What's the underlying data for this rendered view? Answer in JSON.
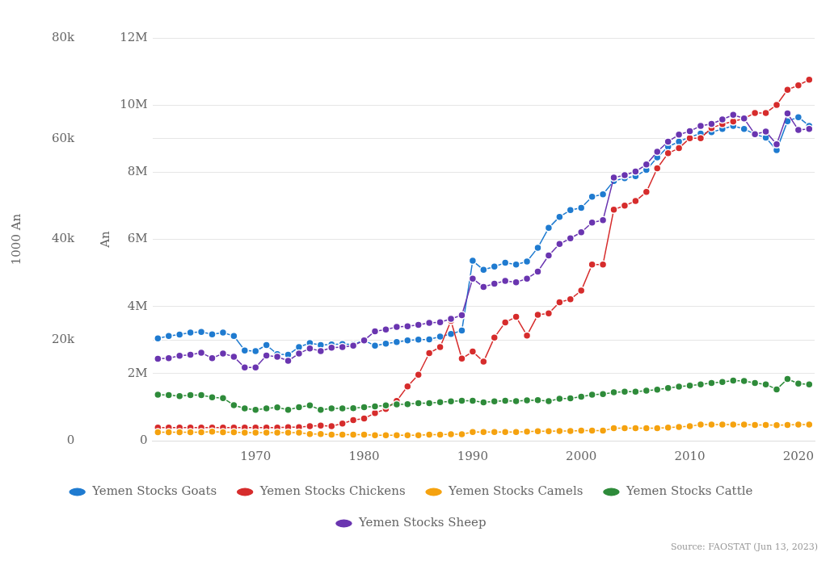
{
  "chart_data": {
    "type": "line",
    "ylabel": "An",
    "y2label": "1000 An",
    "annotations": [
      "Source: FAOSTAT (Jun 13, 2023)"
    ],
    "x": [
      1961,
      1962,
      1963,
      1964,
      1965,
      1966,
      1967,
      1968,
      1969,
      1970,
      1971,
      1972,
      1973,
      1974,
      1975,
      1976,
      1977,
      1978,
      1979,
      1980,
      1981,
      1982,
      1983,
      1984,
      1985,
      1986,
      1987,
      1988,
      1989,
      1990,
      1991,
      1992,
      1993,
      1994,
      1995,
      1996,
      1997,
      1998,
      1999,
      2000,
      2001,
      2002,
      2003,
      2004,
      2005,
      2006,
      2007,
      2008,
      2009,
      2010,
      2011,
      2012,
      2013,
      2014,
      2015,
      2016,
      2017,
      2018,
      2019,
      2020,
      2021
    ],
    "xlim": [
      1960.5,
      2021.5
    ],
    "xticks": [
      1970,
      1980,
      1990,
      2000,
      2010,
      2020
    ],
    "ylim": [
      0,
      12000000
    ],
    "yticks": [
      {
        "value": 0,
        "label": "0"
      },
      {
        "value": 2000000,
        "label": "2M"
      },
      {
        "value": 4000000,
        "label": "4M"
      },
      {
        "value": 6000000,
        "label": "6M"
      },
      {
        "value": 8000000,
        "label": "8M"
      },
      {
        "value": 10000000,
        "label": "10M"
      },
      {
        "value": 12000000,
        "label": "12M"
      }
    ],
    "y2lim": [
      0,
      80000
    ],
    "y2ticks": [
      {
        "value": 0,
        "label": "0"
      },
      {
        "value": 20000,
        "label": "20k"
      },
      {
        "value": 40000,
        "label": "40k"
      },
      {
        "value": 60000,
        "label": "60k"
      },
      {
        "value": 80000,
        "label": "80k"
      }
    ],
    "grid": "y",
    "legend": "bottom",
    "marker": "circle",
    "line_style": "solid",
    "series": [
      {
        "name": "Yemen Stocks Goats",
        "color": "#1f7bd0",
        "values": [
          3050000,
          3120000,
          3160000,
          3220000,
          3240000,
          3170000,
          3220000,
          3120000,
          2690000,
          2670000,
          2850000,
          2580000,
          2560000,
          2790000,
          2910000,
          2850000,
          2870000,
          2880000,
          2870000,
          2990000,
          2830000,
          2890000,
          2940000,
          2990000,
          3010000,
          3020000,
          3100000,
          3180000,
          3280000,
          5360000,
          5090000,
          5190000,
          5300000,
          5250000,
          5340000,
          5750000,
          6340000,
          6670000,
          6870000,
          6940000,
          7270000,
          7340000,
          7740000,
          7820000,
          7880000,
          8070000,
          8440000,
          8760000,
          8910000,
          9050000,
          9150000,
          9190000,
          9290000,
          9380000,
          9290000,
          9130000,
          9030000,
          8660000,
          9520000,
          9640000,
          9380000
        ]
      },
      {
        "name": "Yemen Stocks Chickens",
        "color": "#d62c2c",
        "axis": "y2",
        "values": [
          2600,
          2600,
          2600,
          2600,
          2600,
          2600,
          2600,
          2600,
          2600,
          2600,
          2600,
          2600,
          2700,
          2700,
          2900,
          3000,
          2900,
          3400,
          4100,
          4400,
          5500,
          6300,
          7900,
          10800,
          13100,
          17400,
          18600,
          23800,
          16300,
          17700,
          15700,
          20500,
          23500,
          24600,
          20900,
          25000,
          25300,
          27500,
          28100,
          29800,
          35000,
          35000,
          45900,
          46700,
          47600,
          49400,
          54100,
          57100,
          58100,
          60100,
          60100,
          62100,
          62900,
          63400,
          64000,
          65100,
          65100,
          66700,
          69700,
          70600,
          71700
        ]
      },
      {
        "name": "Yemen Stocks Camels",
        "color": "#f5a20f",
        "values": [
          250000,
          250000,
          250000,
          250000,
          250000,
          270000,
          250000,
          250000,
          240000,
          240000,
          240000,
          240000,
          240000,
          240000,
          200000,
          200000,
          180000,
          180000,
          180000,
          180000,
          160000,
          160000,
          160000,
          160000,
          160000,
          180000,
          180000,
          190000,
          190000,
          260000,
          260000,
          260000,
          260000,
          260000,
          270000,
          280000,
          280000,
          290000,
          290000,
          300000,
          300000,
          300000,
          370000,
          370000,
          370000,
          370000,
          370000,
          390000,
          410000,
          430000,
          480000,
          480000,
          480000,
          480000,
          480000,
          470000,
          470000,
          460000,
          470000,
          480000,
          480000
        ]
      },
      {
        "name": "Yemen Stocks Cattle",
        "color": "#2e8b3a",
        "values": [
          1370000,
          1360000,
          1330000,
          1360000,
          1360000,
          1290000,
          1270000,
          1060000,
          960000,
          920000,
          960000,
          990000,
          920000,
          1000000,
          1050000,
          920000,
          960000,
          960000,
          970000,
          1000000,
          1020000,
          1050000,
          1080000,
          1090000,
          1120000,
          1120000,
          1150000,
          1170000,
          1190000,
          1190000,
          1140000,
          1170000,
          1190000,
          1180000,
          1200000,
          1210000,
          1180000,
          1250000,
          1260000,
          1310000,
          1370000,
          1390000,
          1440000,
          1460000,
          1460000,
          1490000,
          1520000,
          1570000,
          1610000,
          1640000,
          1680000,
          1720000,
          1750000,
          1790000,
          1780000,
          1720000,
          1680000,
          1530000,
          1840000,
          1700000,
          1680000
        ]
      },
      {
        "name": "Yemen Stocks Sheep",
        "color": "#6a35b0",
        "values": [
          2440000,
          2460000,
          2530000,
          2560000,
          2620000,
          2460000,
          2600000,
          2500000,
          2180000,
          2180000,
          2540000,
          2500000,
          2380000,
          2600000,
          2750000,
          2670000,
          2770000,
          2790000,
          2830000,
          2990000,
          3260000,
          3310000,
          3390000,
          3410000,
          3450000,
          3510000,
          3530000,
          3630000,
          3740000,
          4830000,
          4580000,
          4680000,
          4760000,
          4720000,
          4830000,
          5040000,
          5520000,
          5860000,
          6030000,
          6210000,
          6500000,
          6570000,
          7840000,
          7910000,
          8020000,
          8230000,
          8610000,
          8910000,
          9120000,
          9220000,
          9380000,
          9440000,
          9570000,
          9710000,
          9600000,
          9130000,
          9210000,
          8830000,
          9750000,
          9260000,
          9290000
        ]
      }
    ]
  }
}
